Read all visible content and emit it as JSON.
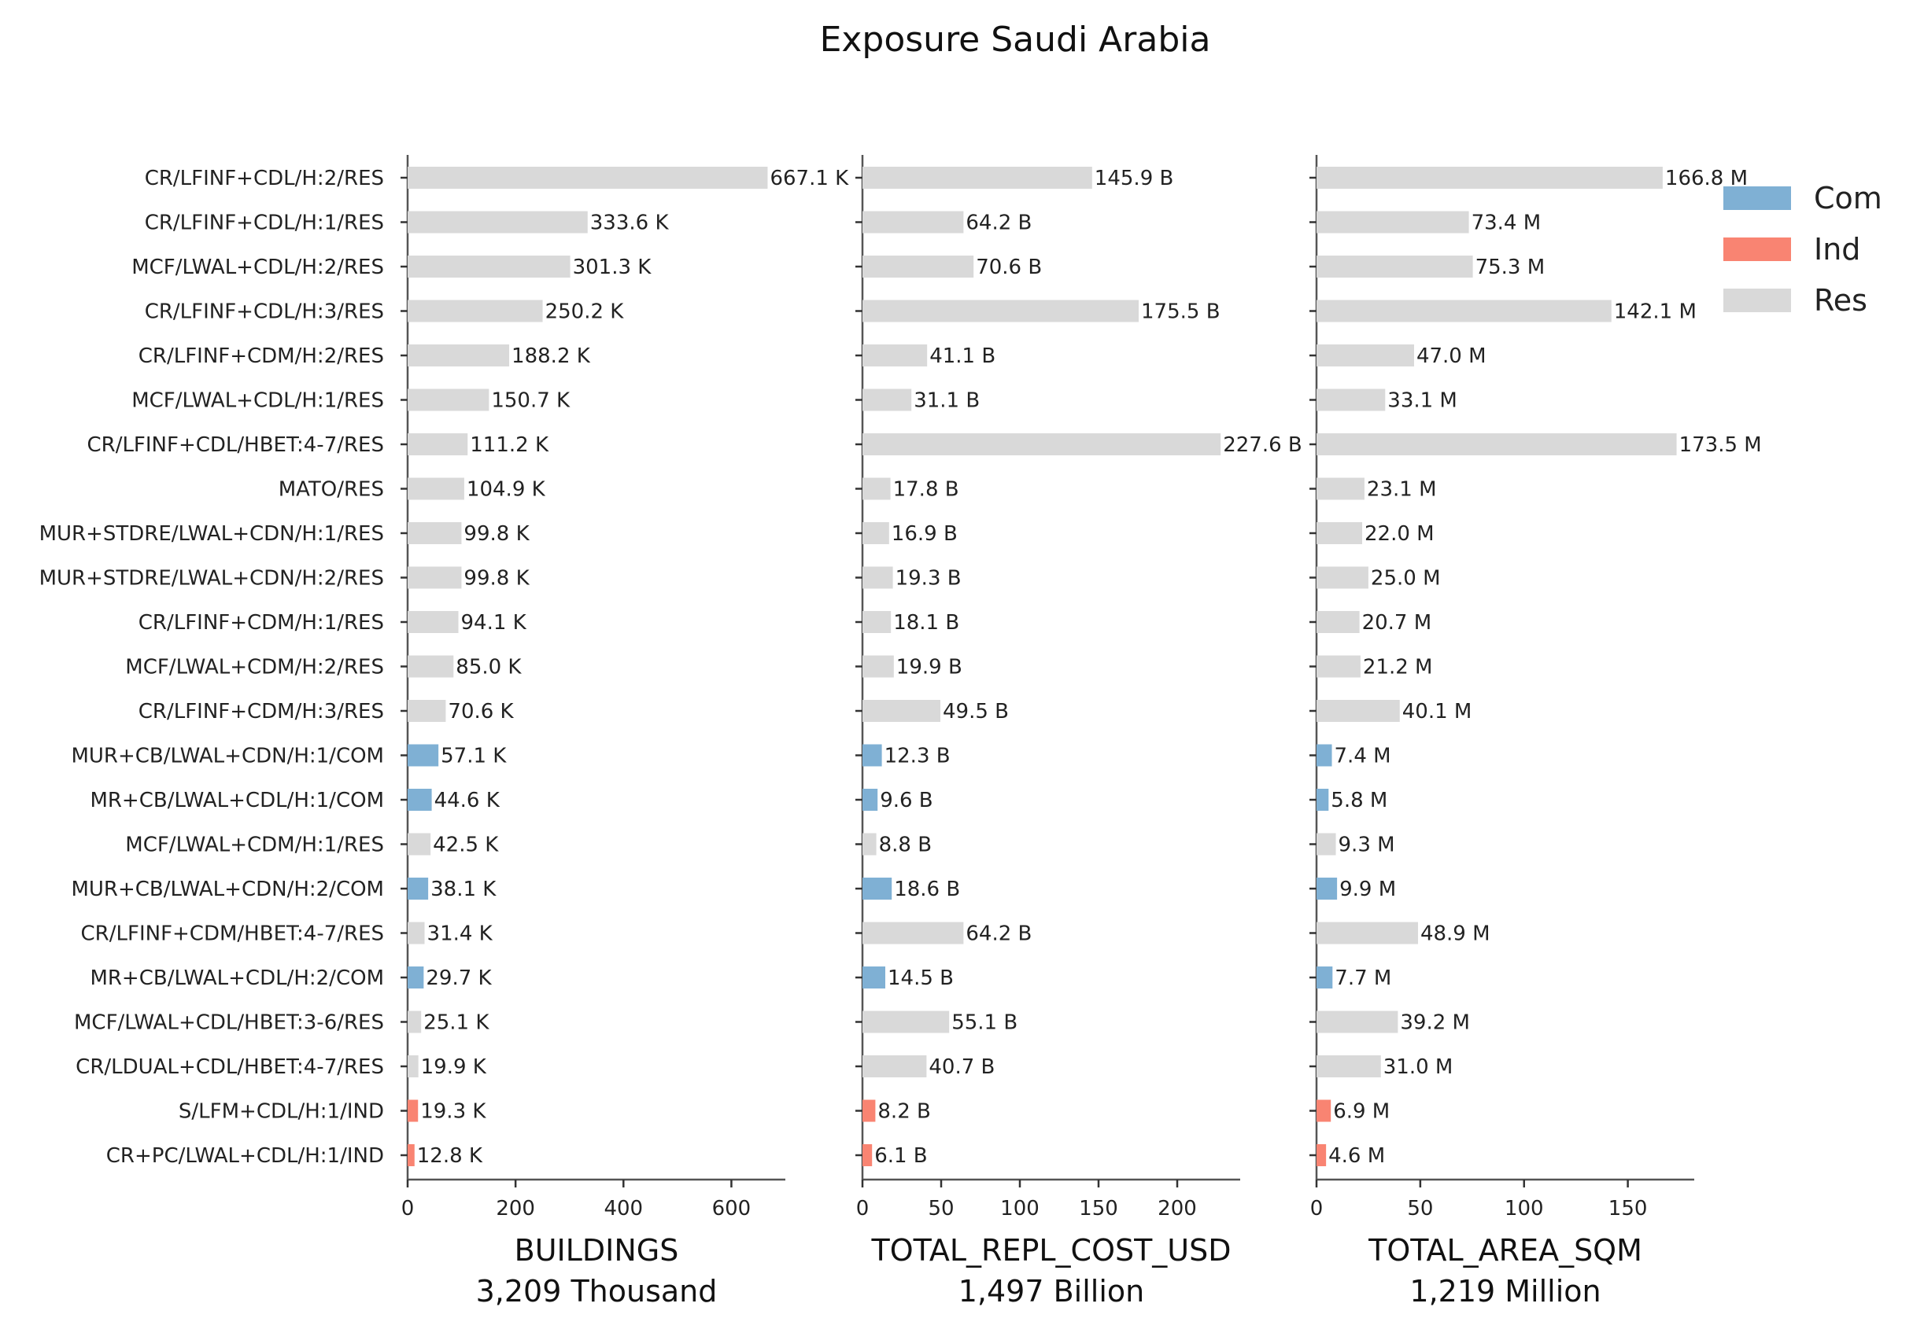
{
  "chart_data": {
    "type": "bar",
    "orientation": "horizontal",
    "title": "Exposure Saudi Arabia",
    "legend": {
      "placement": "top-right",
      "entries": [
        {
          "name": "Com",
          "color": "#7fb0d4"
        },
        {
          "name": "Ind",
          "color": "#f98472"
        },
        {
          "name": "Res",
          "color": "#d9d9d9"
        }
      ]
    },
    "categories": [
      "CR/LFINF+CDL/H:2/RES",
      "CR/LFINF+CDL/H:1/RES",
      "MCF/LWAL+CDL/H:2/RES",
      "CR/LFINF+CDL/H:3/RES",
      "CR/LFINF+CDM/H:2/RES",
      "MCF/LWAL+CDL/H:1/RES",
      "CR/LFINF+CDL/HBET:4-7/RES",
      "MATO/RES",
      "MUR+STDRE/LWAL+CDN/H:1/RES",
      "MUR+STDRE/LWAL+CDN/H:2/RES",
      "CR/LFINF+CDM/H:1/RES",
      "MCF/LWAL+CDM/H:2/RES",
      "CR/LFINF+CDM/H:3/RES",
      "MUR+CB/LWAL+CDN/H:1/COM",
      "MR+CB/LWAL+CDL/H:1/COM",
      "MCF/LWAL+CDM/H:1/RES",
      "MUR+CB/LWAL+CDN/H:2/COM",
      "CR/LFINF+CDM/HBET:4-7/RES",
      "MR+CB/LWAL+CDL/H:2/COM",
      "MCF/LWAL+CDL/HBET:3-6/RES",
      "CR/LDUAL+CDL/HBET:4-7/RES",
      "S/LFM+CDL/H:1/IND",
      "CR+PC/LWAL+CDL/H:1/IND"
    ],
    "occupancy": [
      "Res",
      "Res",
      "Res",
      "Res",
      "Res",
      "Res",
      "Res",
      "Res",
      "Res",
      "Res",
      "Res",
      "Res",
      "Res",
      "Com",
      "Com",
      "Res",
      "Com",
      "Res",
      "Com",
      "Res",
      "Res",
      "Ind",
      "Ind"
    ],
    "panels": [
      {
        "xlabel": "BUILDINGS",
        "subtitle": "3,209 Thousand",
        "xlim": [
          0,
          700
        ],
        "xticks": [
          0,
          200,
          400,
          600
        ],
        "xtick_labels": [
          "0",
          "200",
          "400",
          "600"
        ],
        "values": [
          667.1,
          333.6,
          301.3,
          250.2,
          188.2,
          150.7,
          111.2,
          104.9,
          99.8,
          99.8,
          94.1,
          85.0,
          70.6,
          57.1,
          44.6,
          42.5,
          38.1,
          31.4,
          29.7,
          25.1,
          19.9,
          19.3,
          12.8
        ],
        "value_labels": [
          "667.1 K",
          "333.6 K",
          "301.3 K",
          "250.2 K",
          "188.2 K",
          "150.7 K",
          "111.2 K",
          "104.9 K",
          "99.8 K",
          "99.8 K",
          "94.1 K",
          "85.0 K",
          "70.6 K",
          "57.1 K",
          "44.6 K",
          "42.5 K",
          "38.1 K",
          "31.4 K",
          "29.7 K",
          "25.1 K",
          "19.9 K",
          "19.3 K",
          "12.8 K"
        ]
      },
      {
        "xlabel": "TOTAL_REPL_COST_USD",
        "subtitle": "1,497 Billion",
        "xlim": [
          0,
          240
        ],
        "xticks": [
          0,
          50,
          100,
          150,
          200
        ],
        "xtick_labels": [
          "0",
          "50",
          "100",
          "150",
          "200"
        ],
        "values": [
          145.9,
          64.2,
          70.6,
          175.5,
          41.1,
          31.1,
          227.6,
          17.8,
          16.9,
          19.3,
          18.1,
          19.9,
          49.5,
          12.3,
          9.6,
          8.8,
          18.6,
          64.2,
          14.5,
          55.1,
          40.7,
          8.2,
          6.1
        ],
        "value_labels": [
          "145.9 B",
          "64.2 B",
          "70.6 B",
          "175.5 B",
          "41.1 B",
          "31.1 B",
          "227.6 B",
          "17.8 B",
          "16.9 B",
          "19.3 B",
          "18.1 B",
          "19.9 B",
          "49.5 B",
          "12.3 B",
          "9.6 B",
          "8.8 B",
          "18.6 B",
          "64.2 B",
          "14.5 B",
          "55.1 B",
          "40.7 B",
          "8.2 B",
          "6.1 B"
        ]
      },
      {
        "xlabel": "TOTAL_AREA_SQM",
        "subtitle": "1,219 Million",
        "xlim": [
          0,
          182
        ],
        "xticks": [
          0,
          50,
          100,
          150
        ],
        "xtick_labels": [
          "0",
          "50",
          "100",
          "150"
        ],
        "values": [
          166.8,
          73.4,
          75.3,
          142.1,
          47.0,
          33.1,
          173.5,
          23.1,
          22.0,
          25.0,
          20.7,
          21.2,
          40.1,
          7.4,
          5.8,
          9.3,
          9.9,
          48.9,
          7.7,
          39.2,
          31.0,
          6.9,
          4.6
        ],
        "value_labels": [
          "166.8 M",
          "73.4 M",
          "75.3 M",
          "142.1 M",
          "47.0 M",
          "33.1 M",
          "173.5 M",
          "23.1 M",
          "22.0 M",
          "25.0 M",
          "20.7 M",
          "21.2 M",
          "40.1 M",
          "7.4 M",
          "5.8 M",
          "9.3 M",
          "9.9 M",
          "48.9 M",
          "7.7 M",
          "39.2 M",
          "31.0 M",
          "6.9 M",
          "4.6 M"
        ]
      }
    ]
  }
}
